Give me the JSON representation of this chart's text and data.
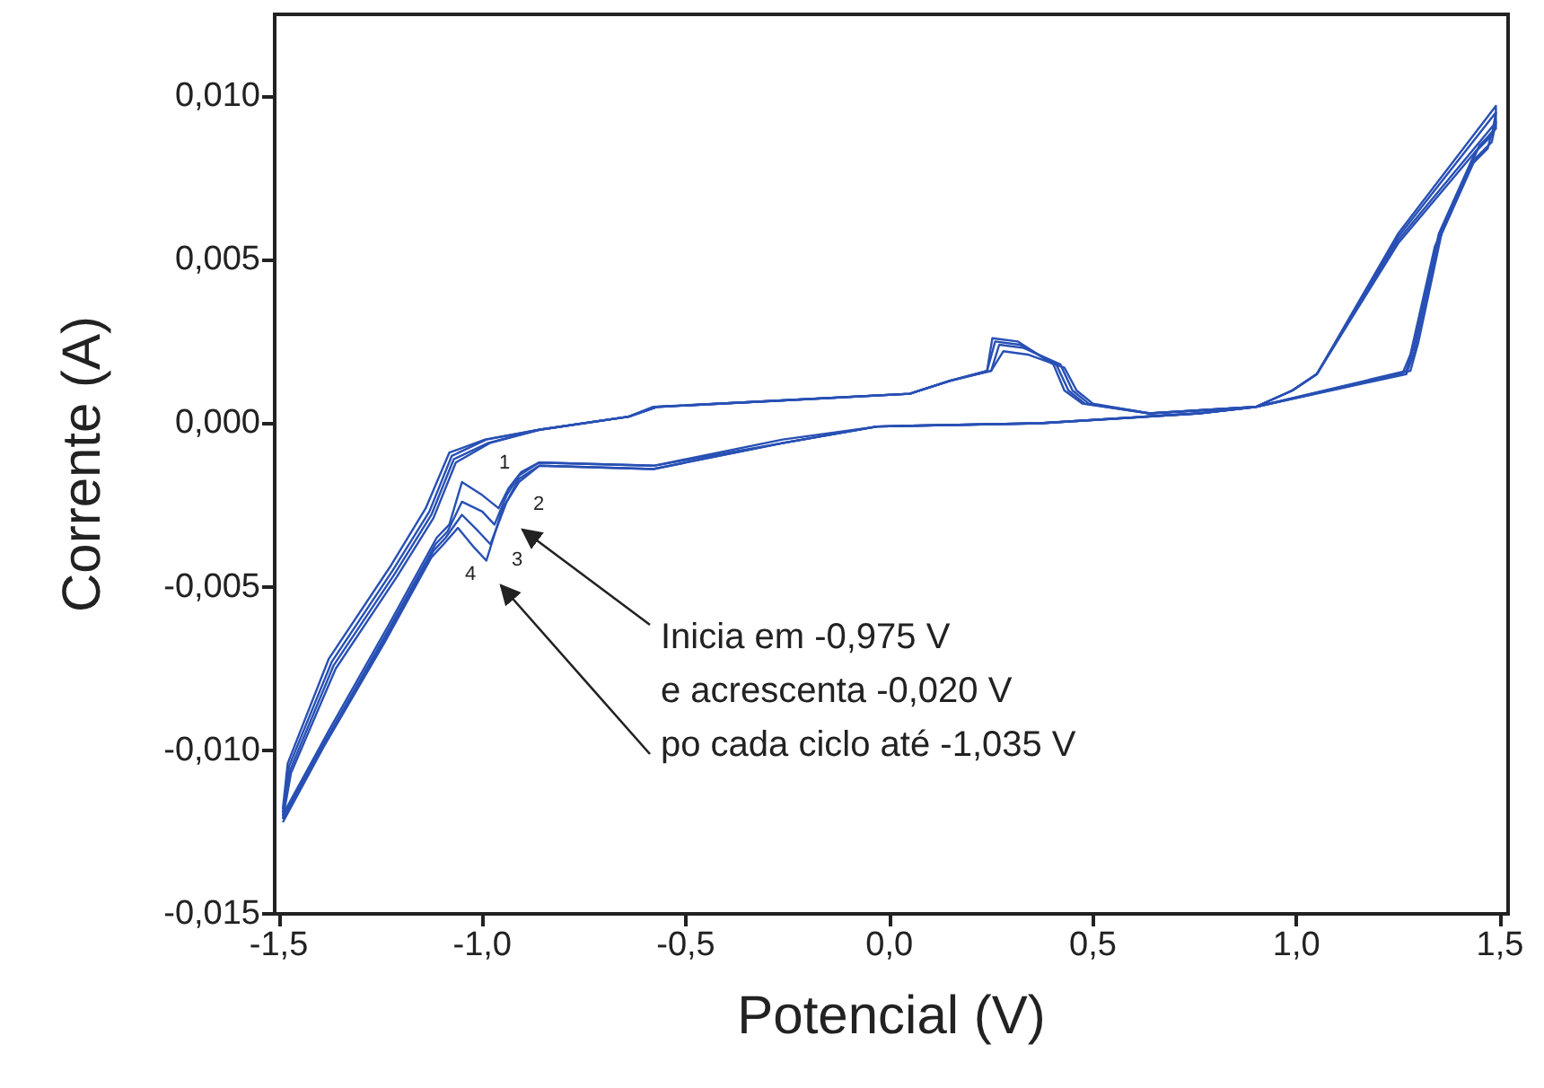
{
  "chart_data": {
    "type": "line",
    "xlabel": "Potencial (V)",
    "ylabel": "Corrente (A)",
    "xlim": [
      -1.51,
      1.52
    ],
    "ylim": [
      -0.015,
      0.0125
    ],
    "xticks": [
      {
        "value": -1.5,
        "label": "-1,5"
      },
      {
        "value": -1.0,
        "label": "-1,0"
      },
      {
        "value": -0.5,
        "label": "-0,5"
      },
      {
        "value": 0,
        "label": "0,0"
      },
      {
        "value": 0.5,
        "label": "0,5"
      },
      {
        "value": 1.0,
        "label": "1,0"
      },
      {
        "value": 1.5,
        "label": "1,5"
      }
    ],
    "yticks": [
      {
        "value": -0.015,
        "label": "-0,015"
      },
      {
        "value": -0.01,
        "label": "-0,010"
      },
      {
        "value": -0.005,
        "label": "-0,005"
      },
      {
        "value": 0,
        "label": "0,000"
      },
      {
        "value": 0.005,
        "label": "0,005"
      },
      {
        "value": 0.01,
        "label": "0,010"
      }
    ],
    "grid": false,
    "marker": "none",
    "line_style": "solid",
    "series": [
      {
        "color": "#2850b4",
        "x": [
          -1.49,
          -1.478,
          -1.377,
          -1.227,
          -1.139,
          -1.081,
          -0.993,
          -0.861,
          -0.641,
          -0.58,
          -0.262,
          0.05,
          0.148,
          0.24,
          0.253,
          0.315,
          0.403,
          0.43,
          0.474,
          0.637,
          0.9,
          1.28,
          1.3,
          1.36,
          1.45,
          1.49,
          1.49,
          1.25,
          1.05,
          0.99,
          0.9,
          0.76,
          0.368,
          -0.029,
          -0.262,
          -0.579,
          -0.861,
          -0.905,
          -0.936,
          -0.96,
          -1.0,
          -1.05,
          -1.081,
          -1.112,
          -1.227,
          -1.377,
          -1.487
        ],
        "values": [
          -0.0118,
          -0.0104,
          -0.0072,
          -0.0044,
          -0.0026,
          -0.0009,
          -0.0005,
          -0.0002,
          0.0002,
          0.0005,
          0.0007,
          0.0009,
          0.0013,
          0.0016,
          0.0026,
          0.0025,
          0.0018,
          0.001,
          0.0006,
          0.0003,
          0.0005,
          0.0016,
          0.0025,
          0.006,
          0.0085,
          0.009,
          0.0097,
          0.0058,
          0.0015,
          0.001,
          0.0005,
          0.0003,
          0.0,
          -0.0001,
          -0.0005,
          -0.0013,
          -0.0012,
          -0.0015,
          -0.002,
          -0.0026,
          -0.0022,
          -0.0018,
          -0.0031,
          -0.0035,
          -0.0061,
          -0.0094,
          -0.0119
        ]
      },
      {
        "color": "#2850b4",
        "x": [
          -1.49,
          -1.475,
          -1.37,
          -1.22,
          -1.13,
          -1.075,
          -0.99,
          -0.86,
          -0.64,
          -0.57,
          -0.26,
          0.05,
          0.15,
          0.24,
          0.26,
          0.32,
          0.41,
          0.44,
          0.48,
          0.64,
          0.9,
          1.27,
          1.29,
          1.35,
          1.44,
          1.48,
          1.49,
          1.25,
          1.05,
          0.99,
          0.9,
          0.76,
          0.37,
          -0.03,
          -0.26,
          -0.58,
          -0.86,
          -0.91,
          -0.94,
          -0.97,
          -1.0,
          -1.05,
          -1.085,
          -1.115,
          -1.23,
          -1.38,
          -1.49
        ],
        "values": [
          -0.0119,
          -0.0105,
          -0.0073,
          -0.0045,
          -0.0027,
          -0.001,
          -0.0005,
          -0.0002,
          0.0002,
          0.0005,
          0.0007,
          0.0009,
          0.0013,
          0.0016,
          0.0025,
          0.0024,
          0.0018,
          0.001,
          0.0006,
          0.0003,
          0.0005,
          0.0016,
          0.0024,
          0.0058,
          0.0083,
          0.0088,
          0.0095,
          0.0057,
          0.0015,
          0.001,
          0.0005,
          0.0003,
          0.0,
          -0.0001,
          -0.0006,
          -0.0013,
          -0.0012,
          -0.0016,
          -0.0022,
          -0.0031,
          -0.0027,
          -0.0024,
          -0.0033,
          -0.0037,
          -0.0063,
          -0.0096,
          -0.012
        ]
      },
      {
        "color": "#2850b4",
        "x": [
          -1.49,
          -1.472,
          -1.365,
          -1.215,
          -1.125,
          -1.07,
          -0.985,
          -0.86,
          -0.64,
          -0.57,
          -0.26,
          0.05,
          0.15,
          0.25,
          0.27,
          0.33,
          0.42,
          0.45,
          0.49,
          0.64,
          0.9,
          1.27,
          1.29,
          1.35,
          1.44,
          1.48,
          1.49,
          1.25,
          1.05,
          0.99,
          0.9,
          0.76,
          0.37,
          -0.03,
          -0.26,
          -0.58,
          -0.86,
          -0.91,
          -0.94,
          -0.98,
          -1.01,
          -1.05,
          -1.09,
          -1.12,
          -1.235,
          -1.385,
          -1.49
        ],
        "values": [
          -0.012,
          -0.0106,
          -0.0074,
          -0.0046,
          -0.0028,
          -0.0011,
          -0.0006,
          -0.0002,
          0.0002,
          0.0005,
          0.0007,
          0.0009,
          0.0013,
          0.0016,
          0.0024,
          0.0023,
          0.0018,
          0.001,
          0.0006,
          0.0003,
          0.0005,
          0.0015,
          0.0022,
          0.0056,
          0.0081,
          0.0086,
          0.0092,
          0.0056,
          0.0015,
          0.001,
          0.0005,
          0.0003,
          0.0,
          -0.0001,
          -0.0006,
          -0.0014,
          -0.0013,
          -0.0017,
          -0.0024,
          -0.0037,
          -0.0033,
          -0.0028,
          -0.0035,
          -0.0039,
          -0.0065,
          -0.0097,
          -0.0121
        ]
      },
      {
        "color": "#2850b4",
        "x": [
          -1.49,
          -1.47,
          -1.36,
          -1.21,
          -1.12,
          -1.065,
          -0.98,
          -0.86,
          -0.64,
          -0.57,
          -0.26,
          0.05,
          0.15,
          0.25,
          0.28,
          0.34,
          0.43,
          0.46,
          0.5,
          0.64,
          0.9,
          1.26,
          1.28,
          1.34,
          1.43,
          1.47,
          1.48,
          1.25,
          1.05,
          0.99,
          0.9,
          0.76,
          0.37,
          -0.03,
          -0.26,
          -0.58,
          -0.86,
          -0.91,
          -0.95,
          -0.99,
          -1.02,
          -1.06,
          -1.095,
          -1.125,
          -1.24,
          -1.39,
          -1.49
        ],
        "values": [
          -0.0121,
          -0.0107,
          -0.0075,
          -0.0047,
          -0.0029,
          -0.0012,
          -0.0006,
          -0.0002,
          0.0002,
          0.0005,
          0.0007,
          0.0009,
          0.0013,
          0.0016,
          0.0022,
          0.0021,
          0.0017,
          0.001,
          0.0006,
          0.0003,
          0.0005,
          0.0015,
          0.0021,
          0.0054,
          0.0079,
          0.0084,
          0.0089,
          0.0055,
          0.0015,
          0.001,
          0.0005,
          0.0003,
          0.0,
          -0.0001,
          -0.0006,
          -0.0014,
          -0.0013,
          -0.0018,
          -0.0026,
          -0.0042,
          -0.0038,
          -0.0032,
          -0.0037,
          -0.0041,
          -0.0067,
          -0.0099,
          -0.0122
        ]
      }
    ],
    "annotations": [
      "1",
      "2",
      "3",
      "4",
      "Inicia em -0,975 V\ne acrescenta -0,020 V\npo cada ciclo até -1,035 V"
    ]
  }
}
